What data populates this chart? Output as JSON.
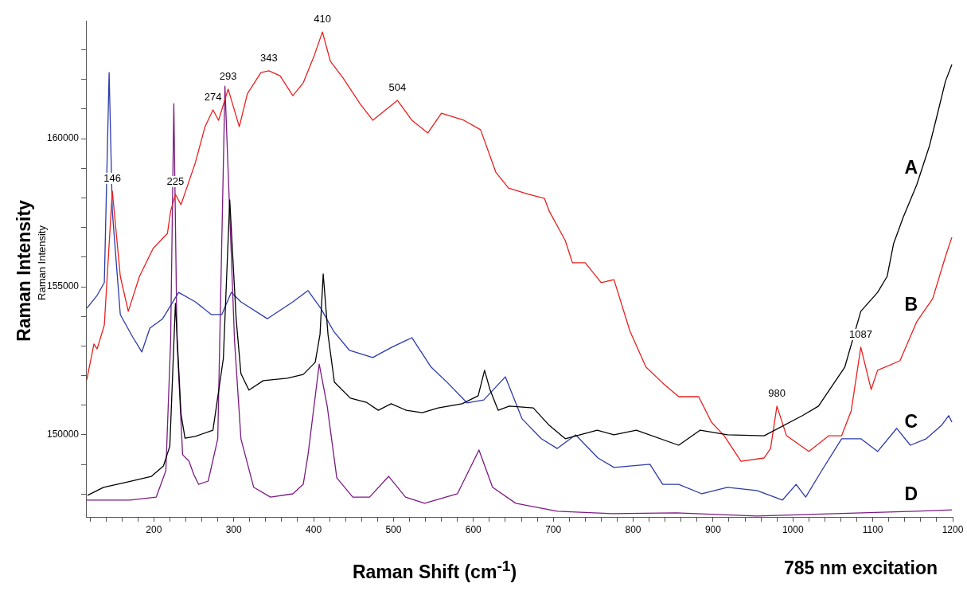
{
  "chart_data": {
    "type": "line",
    "xlabel": "Raman Shift (cm$^{-1}$)",
    "ylabel": "Raman Intensity",
    "marker": "none",
    "legend": false,
    "xlim": [
      115,
      1200
    ],
    "ylim": [
      147230,
      163980
    ],
    "xticks": [
      {
        "value": 120,
        "label": null
      },
      {
        "value": 140,
        "label": null
      },
      {
        "value": 160,
        "label": null
      },
      {
        "value": 180,
        "label": null
      },
      200,
      {
        "value": 220,
        "label": null
      },
      {
        "value": 240,
        "label": null
      },
      {
        "value": 260,
        "label": null
      },
      {
        "value": 280,
        "label": null
      },
      300,
      {
        "value": 320,
        "label": null
      },
      {
        "value": 340,
        "label": null
      },
      {
        "value": 360,
        "label": null
      },
      {
        "value": 380,
        "label": null
      },
      400,
      {
        "value": 420,
        "label": null
      },
      {
        "value": 440,
        "label": null
      },
      {
        "value": 460,
        "label": null
      },
      {
        "value": 480,
        "label": null
      },
      500,
      {
        "value": 520,
        "label": null
      },
      {
        "value": 540,
        "label": null
      },
      {
        "value": 560,
        "label": null
      },
      {
        "value": 580,
        "label": null
      },
      600,
      {
        "value": 620,
        "label": null
      },
      {
        "value": 640,
        "label": null
      },
      {
        "value": 660,
        "label": null
      },
      {
        "value": 680,
        "label": null
      },
      700,
      {
        "value": 720,
        "label": null
      },
      {
        "value": 740,
        "label": null
      },
      {
        "value": 760,
        "label": null
      },
      {
        "value": 780,
        "label": null
      },
      800,
      {
        "value": 820,
        "label": null
      },
      {
        "value": 840,
        "label": null
      },
      {
        "value": 860,
        "label": null
      },
      {
        "value": 880,
        "label": null
      },
      900,
      {
        "value": 920,
        "label": null
      },
      {
        "value": 940,
        "label": null
      },
      {
        "value": 960,
        "label": null
      },
      {
        "value": 980,
        "label": null
      },
      1000,
      {
        "value": 1020,
        "label": null
      },
      {
        "value": 1040,
        "label": null
      },
      {
        "value": 1060,
        "label": null
      },
      {
        "value": 1080,
        "label": null
      },
      1100,
      {
        "value": 1120,
        "label": null
      },
      {
        "value": 1140,
        "label": null
      },
      {
        "value": 1160,
        "label": null
      },
      {
        "value": 1180,
        "label": null
      },
      1200
    ],
    "yticks": [
      {
        "value": 148000,
        "label": null
      },
      {
        "value": 149000,
        "label": null
      },
      150000,
      {
        "value": 151000,
        "label": null
      },
      {
        "value": 152000,
        "label": null
      },
      {
        "value": 153000,
        "label": null
      },
      {
        "value": 154000,
        "label": null
      },
      155000,
      {
        "value": 156000,
        "label": null
      },
      {
        "value": 157000,
        "label": null
      },
      {
        "value": 158000,
        "label": null
      },
      {
        "value": 159000,
        "label": null
      },
      160000,
      {
        "value": 161000,
        "label": null
      },
      {
        "value": 162000,
        "label": null
      },
      {
        "value": 163000,
        "label": null
      }
    ],
    "series": [
      {
        "name": "A",
        "color": "#000000",
        "x": [
          117,
          137,
          167,
          197,
          212,
          220,
          227,
          234,
          239,
          252,
          274,
          287,
          295,
          303,
          309,
          319,
          337,
          367,
          387,
          402,
          408,
          412,
          418,
          426,
          446,
          466,
          481,
          497,
          516,
          536,
          556,
          586,
          606,
          614,
          621,
          631,
          645,
          675,
          695,
          715,
          755,
          776,
          804,
          857,
          884,
          918,
          964,
          1012,
          1032,
          1065,
          1085,
          1106,
          1118,
          1126,
          1138,
          1155,
          1171,
          1179,
          1191,
          1199
        ],
        "values": [
          147960,
          148230,
          148410,
          148600,
          148950,
          149620,
          154440,
          150700,
          149890,
          149950,
          150160,
          152580,
          157930,
          153920,
          152070,
          151510,
          151830,
          151910,
          152040,
          152450,
          153390,
          155430,
          153390,
          151780,
          151240,
          151100,
          150830,
          151050,
          150830,
          150750,
          150910,
          151050,
          151320,
          152180,
          151510,
          150830,
          150970,
          150910,
          150320,
          149870,
          150160,
          150000,
          150160,
          149650,
          150160,
          150000,
          149970,
          150650,
          150970,
          152290,
          154170,
          154810,
          155350,
          156450,
          157340,
          158440,
          159760,
          160620,
          161940,
          162500
        ]
      },
      {
        "name": "B",
        "color": "#e8201e",
        "x": [
          116,
          125,
          129,
          138,
          148,
          158,
          168,
          182,
          199,
          217,
          221,
          227,
          234,
          252,
          264,
          274,
          281,
          293,
          307,
          317,
          334,
          344,
          358,
          374,
          387,
          401,
          411,
          421,
          437,
          458,
          474,
          505,
          523,
          543,
          560,
          588,
          609,
          628,
          644,
          669,
          689,
          695,
          715,
          724,
          740,
          760,
          776,
          796,
          816,
          837,
          857,
          882,
          898,
          914,
          935,
          964,
          972,
          980,
          992,
          1020,
          1045,
          1061,
          1073,
          1085,
          1098,
          1106,
          1134,
          1155,
          1175,
          1191,
          1199
        ],
        "values": [
          151860,
          153070,
          152900,
          153710,
          158230,
          155350,
          154170,
          155350,
          156290,
          156800,
          157550,
          158120,
          157770,
          159190,
          160400,
          160970,
          160620,
          161670,
          160400,
          161510,
          162230,
          162290,
          162120,
          161450,
          161880,
          162820,
          163600,
          162610,
          162040,
          161180,
          160620,
          161290,
          160620,
          160190,
          160860,
          160620,
          160300,
          158870,
          158330,
          158120,
          157980,
          157550,
          156560,
          155810,
          155810,
          155140,
          155240,
          153500,
          152290,
          151750,
          151290,
          151290,
          150430,
          149970,
          149110,
          149220,
          149540,
          150970,
          149970,
          149440,
          149970,
          149970,
          150810,
          152960,
          151530,
          152180,
          152500,
          153820,
          154600,
          156020,
          156670
        ]
      },
      {
        "name": "C",
        "color": "#2b3aa8",
        "x": [
          116,
          129,
          138,
          144,
          148,
          158,
          174,
          185,
          195,
          211,
          231,
          252,
          272,
          285,
          297,
          309,
          342,
          374,
          393,
          409,
          425,
          445,
          474,
          498,
          523,
          547,
          568,
          592,
          613,
          640,
          661,
          685,
          705,
          728,
          756,
          776,
          821,
          837,
          857,
          886,
          918,
          955,
          987,
          1004,
          1016,
          1036,
          1061,
          1085,
          1106,
          1130,
          1147,
          1167,
          1186,
          1195,
          1199
        ],
        "values": [
          154270,
          154710,
          155140,
          162230,
          157550,
          154060,
          153280,
          152800,
          153600,
          153920,
          154810,
          154490,
          154060,
          154060,
          154810,
          154490,
          153920,
          154490,
          154870,
          154270,
          153500,
          152850,
          152610,
          152960,
          153280,
          152290,
          151750,
          151080,
          151180,
          151960,
          150540,
          149870,
          149540,
          150000,
          149220,
          148900,
          149010,
          148330,
          148330,
          148010,
          148230,
          148120,
          147800,
          148330,
          147900,
          148790,
          149870,
          149870,
          149440,
          150220,
          149650,
          149870,
          150320,
          150650,
          150430
        ]
      },
      {
        "name": "D",
        "color": "#7b1a83",
        "x": [
          116,
          170,
          203,
          215,
          221,
          225,
          229,
          236,
          244,
          250,
          256,
          268,
          280,
          289,
          301,
          309,
          325,
          346,
          374,
          387,
          393,
          407,
          417,
          429,
          449,
          470,
          494,
          515,
          539,
          580,
          607,
          624,
          653,
          705,
          774,
          854,
          954,
          1053,
          1153,
          1199
        ],
        "values": [
          147800,
          147800,
          147900,
          148790,
          153170,
          161180,
          153170,
          149330,
          149110,
          148660,
          148330,
          148440,
          149870,
          161770,
          153170,
          149870,
          148230,
          147900,
          148010,
          148330,
          149330,
          152390,
          150970,
          148550,
          147900,
          147900,
          148600,
          147900,
          147690,
          148010,
          149490,
          148230,
          147690,
          147420,
          147340,
          147370,
          147260,
          147340,
          147420,
          147470
        ]
      }
    ],
    "annotations": [
      {
        "text": "146",
        "x": 148,
        "y": 158230
      },
      {
        "text": "225",
        "x": 227,
        "y": 158120
      },
      {
        "text": "274",
        "x": 274,
        "y": 160970
      },
      {
        "text": "293",
        "x": 293,
        "y": 161670
      },
      {
        "text": "343",
        "x": 344,
        "y": 162290
      },
      {
        "text": "410",
        "x": 411,
        "y": 163600
      },
      {
        "text": "504",
        "x": 505,
        "y": 161290
      },
      {
        "text": "980",
        "x": 980,
        "y": 150970
      },
      {
        "text": "1087",
        "x": 1085,
        "y": 152960
      },
      "785 nm excitation",
      "Raman Intensity"
    ]
  }
}
